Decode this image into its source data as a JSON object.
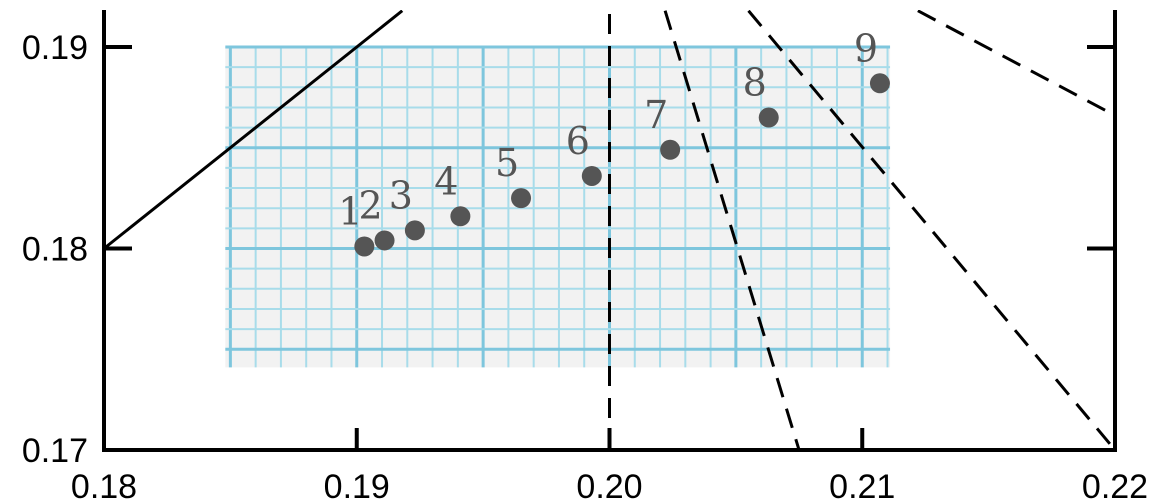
{
  "chart_data": {
    "type": "scatter",
    "title": "",
    "xlabel": "",
    "ylabel": "",
    "xlim": [
      0.18,
      0.22
    ],
    "ylim": [
      0.17,
      0.192
    ],
    "x_ticks": [
      "0.18",
      "0.19",
      "0.20",
      "0.21",
      "0.22"
    ],
    "y_ticks": [
      "0.17",
      "0.18",
      "0.19"
    ],
    "x_tick_values": [
      0.18,
      0.19,
      0.2,
      0.21,
      0.22
    ],
    "y_tick_values": [
      0.17,
      0.18,
      0.19
    ],
    "grid_region": {
      "x": [
        0.1848,
        0.2111
      ],
      "y": [
        0.1741,
        0.19
      ]
    },
    "points": [
      {
        "label": "1",
        "x": 0.1903,
        "y": 0.1801
      },
      {
        "label": "2",
        "x": 0.1911,
        "y": 0.1804
      },
      {
        "label": "3",
        "x": 0.1923,
        "y": 0.1809
      },
      {
        "label": "4",
        "x": 0.1941,
        "y": 0.1816
      },
      {
        "label": "5",
        "x": 0.1965,
        "y": 0.1825
      },
      {
        "label": "6",
        "x": 0.1993,
        "y": 0.1836
      },
      {
        "label": "7",
        "x": 0.2024,
        "y": 0.1849
      },
      {
        "label": "8",
        "x": 0.2063,
        "y": 0.1865
      },
      {
        "label": "9",
        "x": 0.2107,
        "y": 0.1882
      }
    ],
    "lines": [
      {
        "style": "solid",
        "points": [
          [
            0.18,
            0.18
          ],
          [
            0.1918,
            0.1918
          ]
        ]
      },
      {
        "style": "dashed",
        "points": [
          [
            0.2,
            0.17
          ],
          [
            0.2,
            0.1918
          ]
        ]
      },
      {
        "style": "dashed",
        "points": [
          [
            0.2022,
            0.1918
          ],
          [
            0.2075,
            0.17
          ]
        ]
      },
      {
        "style": "dashed",
        "points": [
          [
            0.2055,
            0.1918
          ],
          [
            0.22,
            0.17
          ]
        ]
      },
      {
        "style": "dashed",
        "points": [
          [
            0.2122,
            0.1918
          ],
          [
            0.22,
            0.1866
          ]
        ]
      }
    ],
    "colors": {
      "points": "#555555",
      "grid_fine": "#a8dcea",
      "grid_major": "#7ec6dd",
      "grid_bg": "#f2f2f2"
    }
  }
}
